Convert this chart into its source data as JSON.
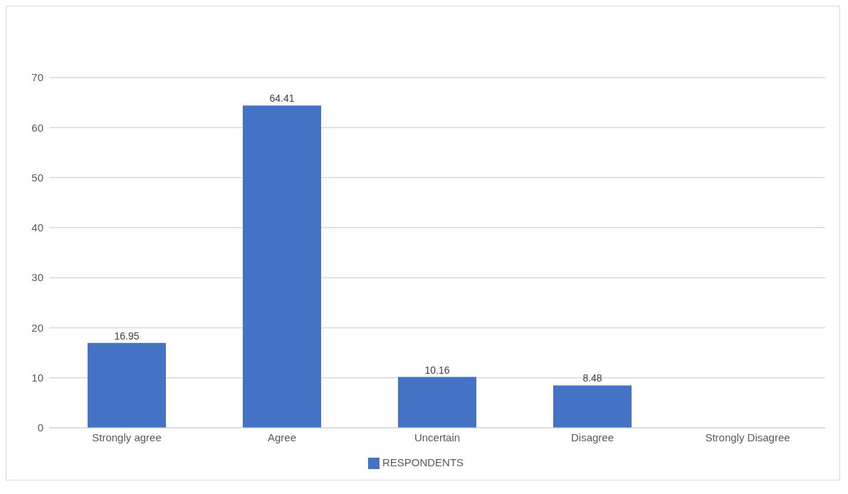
{
  "chart_data": {
    "type": "bar",
    "categories": [
      "Strongly agree",
      "Agree",
      "Uncertain",
      "Disagree",
      "Strongly Disagree"
    ],
    "series": [
      {
        "name": "RESPONDENTS",
        "color": "#4472c4",
        "values": [
          16.95,
          64.41,
          10.16,
          8.48,
          null
        ]
      }
    ],
    "ylim": [
      0,
      70
    ],
    "yticks": [
      0,
      10,
      20,
      30,
      40,
      50,
      60,
      70
    ],
    "grid": "y",
    "legend": "bottom",
    "data_labels": true
  }
}
